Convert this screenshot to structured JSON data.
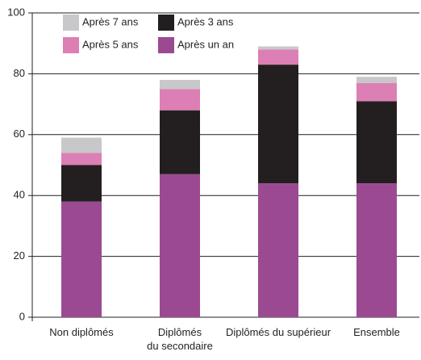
{
  "chart_data": {
    "type": "stacked_bar",
    "categories": [
      "Non diplômés",
      "Diplômés\ndu secondaire",
      "Diplômés du supérieur",
      "Ensemble"
    ],
    "series": [
      {
        "name": "Après un an",
        "color": "#9b4a92",
        "values": [
          38,
          47,
          44,
          44
        ]
      },
      {
        "name": "Après 3 ans",
        "color": "#231f20",
        "values": [
          12,
          21,
          39,
          27
        ]
      },
      {
        "name": "Après 5 ans",
        "color": "#dc7fb4",
        "values": [
          4,
          7,
          5,
          6
        ]
      },
      {
        "name": "Après 7 ans",
        "color": "#c8c8ca",
        "values": [
          5,
          3,
          1,
          2
        ]
      }
    ],
    "ylim": [
      0,
      100
    ],
    "yticks": [
      0,
      20,
      40,
      60,
      80,
      100
    ],
    "grid": true
  }
}
